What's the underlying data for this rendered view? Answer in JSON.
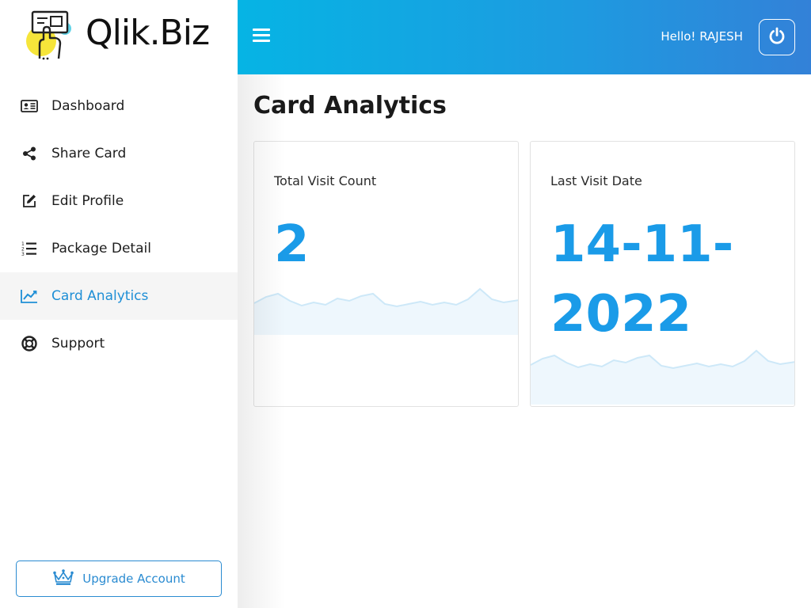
{
  "brand": {
    "name": "Qlik.Biz"
  },
  "sidebar": {
    "items": [
      {
        "label": "Dashboard",
        "icon": "id-card-icon",
        "active": false
      },
      {
        "label": "Share Card",
        "icon": "share-icon",
        "active": false
      },
      {
        "label": "Edit Profile",
        "icon": "edit-icon",
        "active": false
      },
      {
        "label": "Package Detail",
        "icon": "list-icon",
        "active": false
      },
      {
        "label": "Card Analytics",
        "icon": "chart-line-icon",
        "active": true
      },
      {
        "label": "Support",
        "icon": "lifebuoy-icon",
        "active": false
      }
    ],
    "upgrade_label": "Upgrade Account"
  },
  "header": {
    "greeting": "Hello! RAJESH",
    "menu_icon": "hamburger-icon",
    "logout_icon": "power-icon"
  },
  "main": {
    "title": "Card Analytics",
    "cards": [
      {
        "label": "Total Visit Count",
        "value": "2"
      },
      {
        "label": "Last Visit Date",
        "value": "14-11-2022"
      }
    ]
  },
  "colors": {
    "accent": "#1a9be8",
    "header_start": "#06b4e4",
    "header_end": "#3381d8",
    "active_bg": "#f5f5f5"
  }
}
